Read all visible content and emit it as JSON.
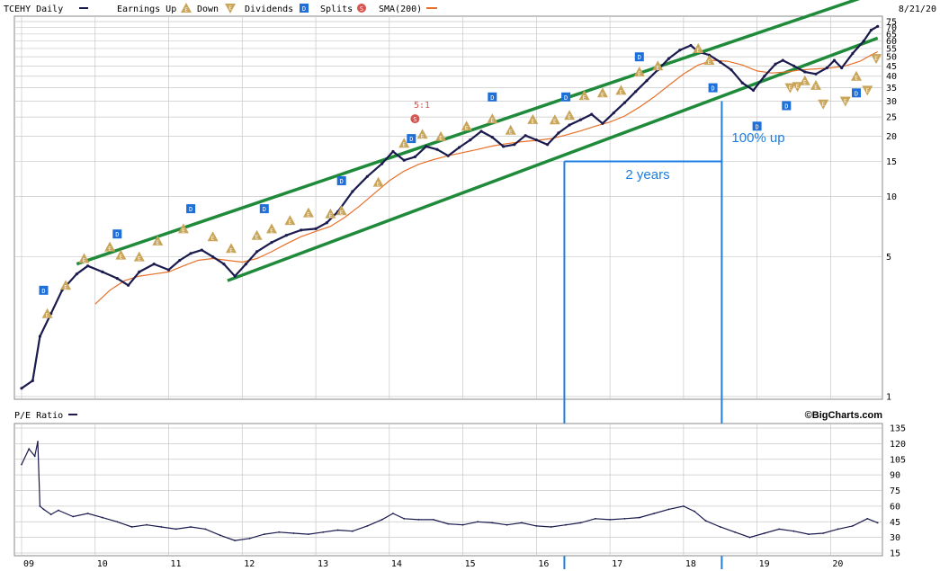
{
  "legend": {
    "symbol": "TCEHY Daily",
    "earnings_up": "Earnings Up",
    "down": "Down",
    "dividends": "Dividends",
    "splits": "Splits",
    "sma": "SMA(200)",
    "date": "8/21/20"
  },
  "pe_panel": {
    "title": "P/E Ratio",
    "credit": "©BigCharts.com"
  },
  "annotations": {
    "years": "2 years",
    "gain": "100% up",
    "split": "5:1"
  },
  "colors": {
    "price": "#1a1a4e",
    "sma": "#e8702a",
    "channel": "#1f8a3a",
    "annotation": "#1e7fe0",
    "earnings": "#c9a55a",
    "dividend": "#1f6fd8",
    "split": "#d9534f",
    "grid": "#c8c8c8"
  },
  "chart_data": [
    {
      "type": "line",
      "panel": "price",
      "scale": "log",
      "title": "TCEHY Daily",
      "ylim": [
        1,
        75
      ],
      "x_ticks": [
        "09",
        "10",
        "11",
        "12",
        "13",
        "14",
        "15",
        "16",
        "17",
        "18",
        "19",
        "20"
      ],
      "y_ticks": [
        1,
        5,
        10,
        15,
        20,
        25,
        30,
        35,
        40,
        45,
        50,
        55,
        60,
        65,
        70,
        75
      ],
      "grid": true,
      "series": [
        {
          "name": "TCEHY Daily",
          "points": [
            [
              2009.0,
              1.1
            ],
            [
              2009.15,
              1.2
            ],
            [
              2009.25,
              2.0
            ],
            [
              2009.4,
              2.6
            ],
            [
              2009.55,
              3.4
            ],
            [
              2009.75,
              4.1
            ],
            [
              2009.9,
              4.5
            ],
            [
              2010.1,
              4.2
            ],
            [
              2010.3,
              3.9
            ],
            [
              2010.45,
              3.6
            ],
            [
              2010.6,
              4.2
            ],
            [
              2010.8,
              4.6
            ],
            [
              2011.0,
              4.3
            ],
            [
              2011.15,
              4.8
            ],
            [
              2011.3,
              5.2
            ],
            [
              2011.45,
              5.4
            ],
            [
              2011.6,
              5.0
            ],
            [
              2011.75,
              4.6
            ],
            [
              2011.9,
              4.0
            ],
            [
              2012.05,
              4.6
            ],
            [
              2012.2,
              5.3
            ],
            [
              2012.4,
              5.9
            ],
            [
              2012.6,
              6.4
            ],
            [
              2012.8,
              6.8
            ],
            [
              2013.0,
              6.9
            ],
            [
              2013.15,
              7.4
            ],
            [
              2013.3,
              8.4
            ],
            [
              2013.5,
              10.6
            ],
            [
              2013.7,
              12.6
            ],
            [
              2013.9,
              14.6
            ],
            [
              2014.05,
              16.8
            ],
            [
              2014.2,
              15.2
            ],
            [
              2014.35,
              15.8
            ],
            [
              2014.5,
              17.8
            ],
            [
              2014.65,
              17.2
            ],
            [
              2014.8,
              16.0
            ],
            [
              2014.95,
              17.6
            ],
            [
              2015.1,
              19.2
            ],
            [
              2015.25,
              21.2
            ],
            [
              2015.4,
              19.8
            ],
            [
              2015.55,
              17.8
            ],
            [
              2015.7,
              18.2
            ],
            [
              2015.85,
              20.2
            ],
            [
              2016.0,
              19.2
            ],
            [
              2016.15,
              18.2
            ],
            [
              2016.3,
              20.8
            ],
            [
              2016.45,
              22.8
            ],
            [
              2016.6,
              24.2
            ],
            [
              2016.75,
              25.8
            ],
            [
              2016.9,
              23.2
            ],
            [
              2017.05,
              26.2
            ],
            [
              2017.2,
              29.5
            ],
            [
              2017.35,
              33.5
            ],
            [
              2017.5,
              38.0
            ],
            [
              2017.65,
              43.0
            ],
            [
              2017.8,
              49.0
            ],
            [
              2017.95,
              54.0
            ],
            [
              2018.1,
              57.0
            ],
            [
              2018.2,
              53.0
            ],
            [
              2018.35,
              51.0
            ],
            [
              2018.5,
              47.0
            ],
            [
              2018.65,
              43.0
            ],
            [
              2018.8,
              37.0
            ],
            [
              2018.95,
              34.0
            ],
            [
              2019.1,
              40.0
            ],
            [
              2019.25,
              46.0
            ],
            [
              2019.35,
              48.0
            ],
            [
              2019.5,
              45.0
            ],
            [
              2019.65,
              42.0
            ],
            [
              2019.8,
              41.0
            ],
            [
              2019.95,
              44.0
            ],
            [
              2020.05,
              48.0
            ],
            [
              2020.15,
              44.0
            ],
            [
              2020.3,
              52.0
            ],
            [
              2020.45,
              60.0
            ],
            [
              2020.55,
              68.0
            ],
            [
              2020.64,
              71.0
            ]
          ]
        },
        {
          "name": "SMA(200)",
          "points": [
            [
              2010.0,
              2.9
            ],
            [
              2010.2,
              3.4
            ],
            [
              2010.4,
              3.8
            ],
            [
              2010.6,
              4.0
            ],
            [
              2010.8,
              4.1
            ],
            [
              2011.0,
              4.2
            ],
            [
              2011.2,
              4.5
            ],
            [
              2011.4,
              4.8
            ],
            [
              2011.6,
              4.9
            ],
            [
              2011.8,
              4.8
            ],
            [
              2012.0,
              4.7
            ],
            [
              2012.2,
              4.9
            ],
            [
              2012.4,
              5.3
            ],
            [
              2012.6,
              5.8
            ],
            [
              2012.8,
              6.3
            ],
            [
              2013.0,
              6.7
            ],
            [
              2013.2,
              7.1
            ],
            [
              2013.4,
              7.9
            ],
            [
              2013.6,
              9.0
            ],
            [
              2013.8,
              10.4
            ],
            [
              2014.0,
              12.0
            ],
            [
              2014.2,
              13.4
            ],
            [
              2014.4,
              14.5
            ],
            [
              2014.6,
              15.3
            ],
            [
              2014.8,
              16.0
            ],
            [
              2015.0,
              16.6
            ],
            [
              2015.2,
              17.2
            ],
            [
              2015.4,
              17.9
            ],
            [
              2015.6,
              18.4
            ],
            [
              2015.8,
              18.8
            ],
            [
              2016.0,
              19.1
            ],
            [
              2016.2,
              19.5
            ],
            [
              2016.4,
              20.3
            ],
            [
              2016.6,
              21.3
            ],
            [
              2016.8,
              22.5
            ],
            [
              2017.0,
              23.6
            ],
            [
              2017.2,
              25.3
            ],
            [
              2017.4,
              28.0
            ],
            [
              2017.6,
              31.5
            ],
            [
              2017.8,
              36.0
            ],
            [
              2018.0,
              41.0
            ],
            [
              2018.2,
              45.5
            ],
            [
              2018.4,
              48.0
            ],
            [
              2018.6,
              47.5
            ],
            [
              2018.8,
              45.5
            ],
            [
              2019.0,
              42.5
            ],
            [
              2019.2,
              41.5
            ],
            [
              2019.4,
              42.0
            ],
            [
              2019.6,
              43.0
            ],
            [
              2019.8,
              43.5
            ],
            [
              2020.0,
              44.0
            ],
            [
              2020.2,
              45.0
            ],
            [
              2020.4,
              47.5
            ],
            [
              2020.55,
              51.0
            ],
            [
              2020.64,
              53.0
            ]
          ]
        },
        {
          "name": "Upper channel",
          "points": [
            [
              2009.75,
              4.6
            ],
            [
              2020.64,
              105.0
            ]
          ]
        },
        {
          "name": "Lower channel",
          "points": [
            [
              2011.8,
              3.8
            ],
            [
              2020.64,
              62.0
            ]
          ]
        }
      ]
    },
    {
      "type": "line",
      "panel": "pe",
      "title": "P/E Ratio",
      "ylim": [
        15,
        135
      ],
      "y_ticks": [
        15,
        30,
        45,
        60,
        75,
        90,
        105,
        120,
        135
      ],
      "grid": true,
      "series": [
        {
          "name": "P/E Ratio",
          "points": [
            [
              2009.0,
              100
            ],
            [
              2009.1,
              115
            ],
            [
              2009.18,
              108
            ],
            [
              2009.22,
              122
            ],
            [
              2009.25,
              60
            ],
            [
              2009.3,
              57
            ],
            [
              2009.4,
              52
            ],
            [
              2009.5,
              56
            ],
            [
              2009.7,
              50
            ],
            [
              2009.9,
              53
            ],
            [
              2010.1,
              49
            ],
            [
              2010.3,
              45
            ],
            [
              2010.5,
              40
            ],
            [
              2010.7,
              42
            ],
            [
              2010.9,
              40
            ],
            [
              2011.1,
              38
            ],
            [
              2011.3,
              40
            ],
            [
              2011.5,
              38
            ],
            [
              2011.7,
              32
            ],
            [
              2011.9,
              27
            ],
            [
              2012.1,
              29
            ],
            [
              2012.3,
              33
            ],
            [
              2012.5,
              35
            ],
            [
              2012.7,
              34
            ],
            [
              2012.9,
              33
            ],
            [
              2013.1,
              35
            ],
            [
              2013.3,
              37
            ],
            [
              2013.5,
              36
            ],
            [
              2013.7,
              41
            ],
            [
              2013.9,
              47
            ],
            [
              2014.05,
              53
            ],
            [
              2014.2,
              48
            ],
            [
              2014.4,
              47
            ],
            [
              2014.6,
              47
            ],
            [
              2014.8,
              43
            ],
            [
              2015.0,
              42
            ],
            [
              2015.2,
              45
            ],
            [
              2015.4,
              44
            ],
            [
              2015.6,
              42
            ],
            [
              2015.8,
              44
            ],
            [
              2016.0,
              41
            ],
            [
              2016.2,
              40
            ],
            [
              2016.4,
              42
            ],
            [
              2016.6,
              44
            ],
            [
              2016.8,
              48
            ],
            [
              2017.0,
              47
            ],
            [
              2017.2,
              48
            ],
            [
              2017.4,
              49
            ],
            [
              2017.6,
              53
            ],
            [
              2017.8,
              57
            ],
            [
              2018.0,
              60
            ],
            [
              2018.15,
              55
            ],
            [
              2018.3,
              46
            ],
            [
              2018.5,
              40
            ],
            [
              2018.7,
              35
            ],
            [
              2018.9,
              30
            ],
            [
              2019.1,
              34
            ],
            [
              2019.3,
              38
            ],
            [
              2019.5,
              36
            ],
            [
              2019.7,
              33
            ],
            [
              2019.9,
              34
            ],
            [
              2020.1,
              38
            ],
            [
              2020.3,
              41
            ],
            [
              2020.5,
              48
            ],
            [
              2020.64,
              44
            ]
          ]
        }
      ]
    }
  ],
  "events": {
    "earnings_up": [
      [
        2009.35,
        2.6
      ],
      [
        2009.6,
        3.6
      ],
      [
        2009.85,
        4.9
      ],
      [
        2010.2,
        5.6
      ],
      [
        2010.35,
        5.1
      ],
      [
        2010.6,
        5.0
      ],
      [
        2010.85,
        6.0
      ],
      [
        2011.2,
        6.9
      ],
      [
        2011.6,
        6.3
      ],
      [
        2011.85,
        5.5
      ],
      [
        2012.2,
        6.4
      ],
      [
        2012.4,
        6.9
      ],
      [
        2012.65,
        7.6
      ],
      [
        2012.9,
        8.3
      ],
      [
        2013.2,
        8.2
      ],
      [
        2013.35,
        8.5
      ],
      [
        2013.85,
        11.8
      ],
      [
        2014.2,
        18.5
      ],
      [
        2014.45,
        20.5
      ],
      [
        2014.7,
        20.0
      ],
      [
        2015.05,
        22.5
      ],
      [
        2015.4,
        24.5
      ],
      [
        2015.65,
        21.5
      ],
      [
        2015.95,
        24.3
      ],
      [
        2016.25,
        24.2
      ],
      [
        2016.45,
        25.5
      ],
      [
        2016.65,
        32.0
      ],
      [
        2016.9,
        33.0
      ],
      [
        2017.15,
        34.0
      ],
      [
        2017.4,
        42.0
      ],
      [
        2017.65,
        45.0
      ],
      [
        2018.2,
        55.0
      ],
      [
        2018.35,
        48.0
      ],
      [
        2019.65,
        38.0
      ],
      [
        2019.8,
        36.0
      ],
      [
        2020.35,
        40.0
      ]
    ],
    "earnings_down": [
      [
        2019.45,
        35.0
      ],
      [
        2019.55,
        35.5
      ],
      [
        2019.9,
        29.0
      ],
      [
        2020.2,
        30.0
      ],
      [
        2020.5,
        34.0
      ],
      [
        2020.62,
        49.0
      ]
    ],
    "dividends": [
      [
        2009.3,
        3.4
      ],
      [
        2010.3,
        6.5
      ],
      [
        2011.3,
        8.7
      ],
      [
        2012.3,
        8.7
      ],
      [
        2013.35,
        12.0
      ],
      [
        2014.3,
        19.5
      ],
      [
        2015.4,
        31.5
      ],
      [
        2016.4,
        31.5
      ],
      [
        2017.4,
        50.0
      ],
      [
        2018.4,
        35.0
      ],
      [
        2019.0,
        22.5
      ],
      [
        2019.4,
        28.5
      ],
      [
        2020.35,
        33.0
      ]
    ],
    "splits": [
      [
        2014.35,
        24.5
      ]
    ]
  },
  "overlays": {
    "vertical_lines": [
      2016.38,
      2018.52
    ],
    "horizontal_segment": {
      "from": 2016.38,
      "to": 2018.52,
      "value": 15.0
    }
  }
}
